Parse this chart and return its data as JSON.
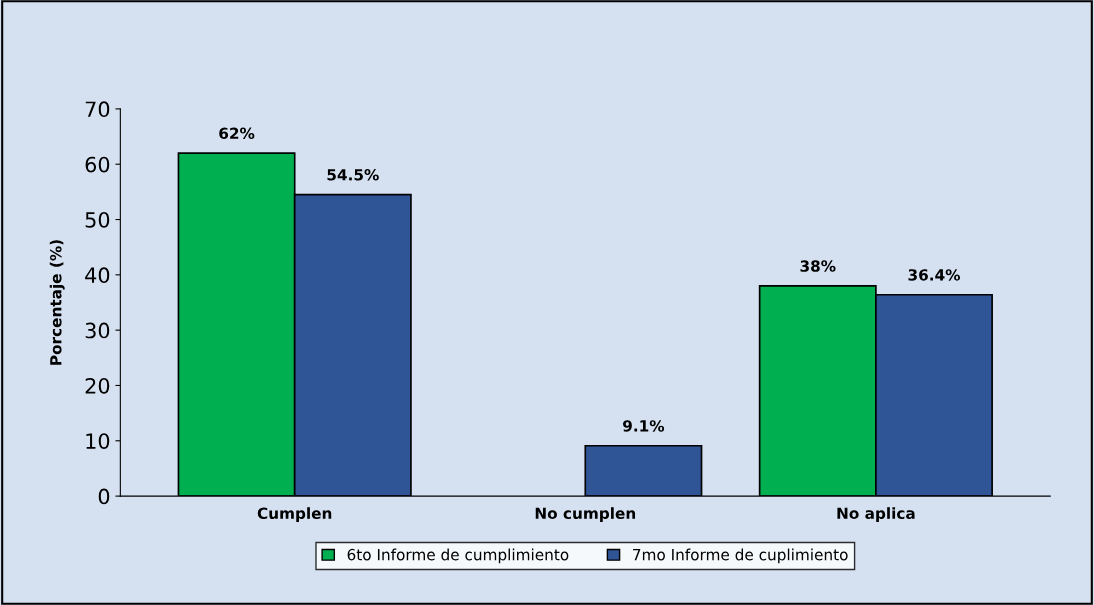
{
  "chart_data": {
    "type": "bar",
    "ylabel": "Porcentaje (%)",
    "categories": [
      "Cumplen",
      "No cumplen",
      "No aplica"
    ],
    "series": [
      {
        "name": "6to Informe de cumplimiento",
        "color": "#00b050",
        "values": [
          62,
          null,
          38
        ],
        "value_labels": [
          "62%",
          null,
          "38%"
        ]
      },
      {
        "name": "7mo Informe de cuplimiento",
        "color": "#2f5597",
        "values": [
          54.5,
          9.1,
          36.4
        ],
        "value_labels": [
          "54.5%",
          "9.1%",
          "36.4%"
        ]
      }
    ],
    "ylim": [
      0,
      70
    ],
    "yticks": [
      0,
      10,
      20,
      30,
      40,
      50,
      60,
      70
    ],
    "grid": false,
    "legend": "bottom"
  }
}
